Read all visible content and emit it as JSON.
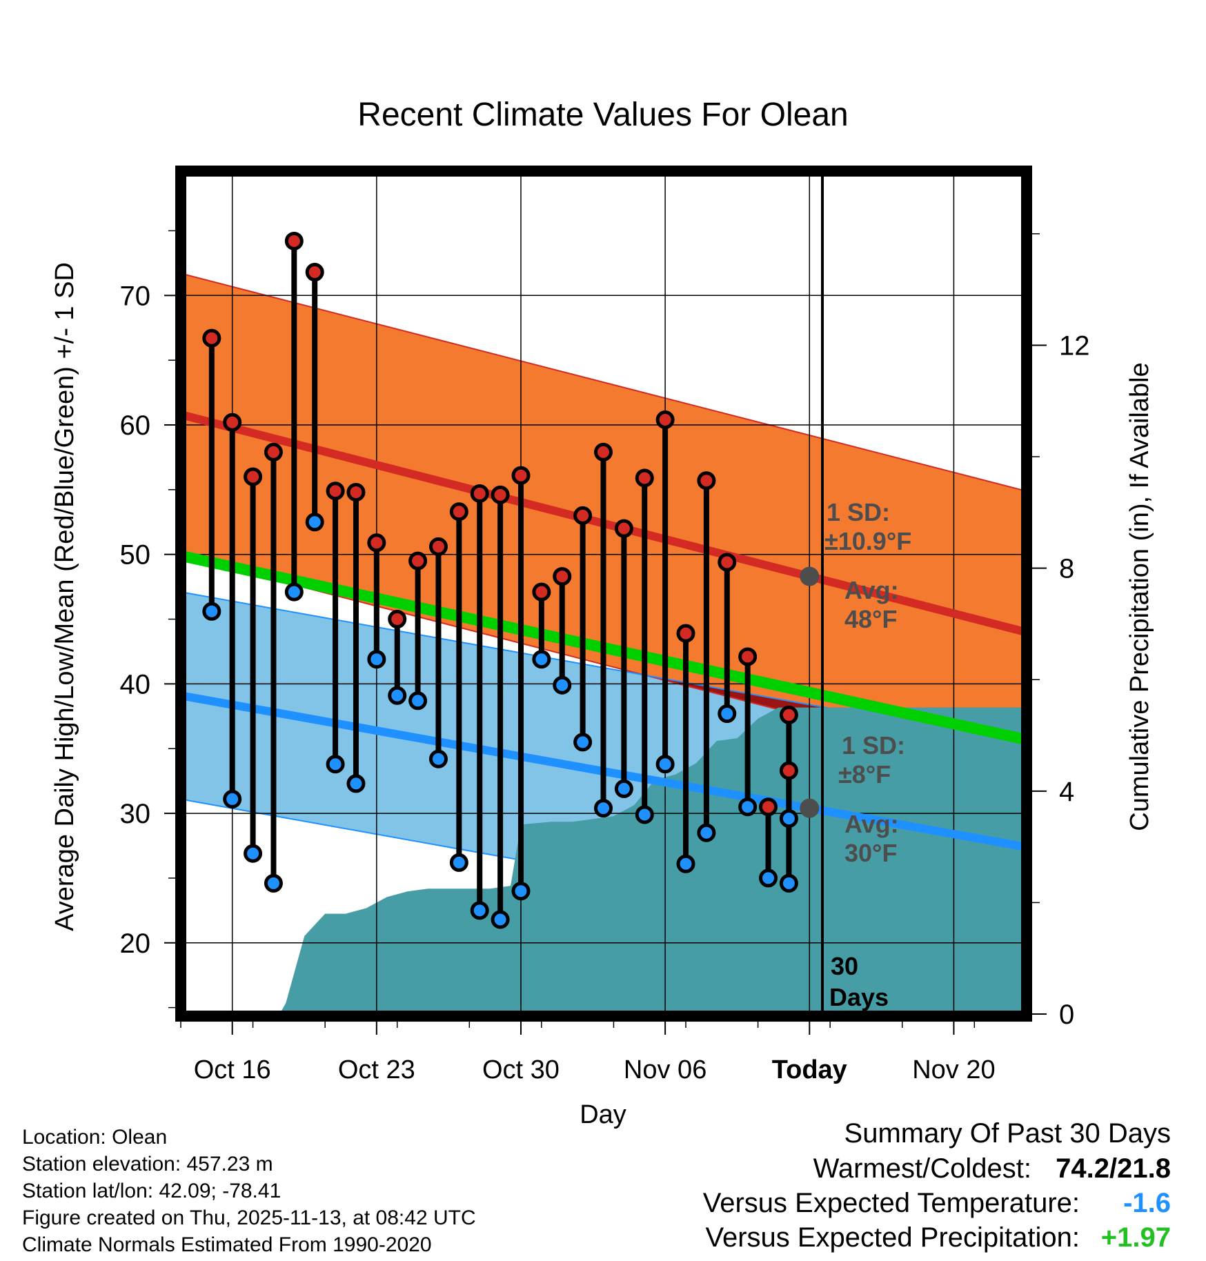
{
  "title": "Recent Climate Values For Olean",
  "footer_left": {
    "location": "Location: Olean",
    "elevation": "Station elevation: 457.23 m",
    "latlon": "Station lat/lon: 42.09; -78.41",
    "created": "Figure created on Thu, 2025-11-13, at 08:42 UTC",
    "normals": "Climate Normals Estimated From 1990-2020"
  },
  "summary": {
    "heading": "Summary Of Past 30 Days",
    "warm_cold_label": "Warmest/Coldest:",
    "warm_cold_value": "74.2/21.8",
    "temp_label": "Versus Expected Temperature:",
    "temp_value": "-1.6",
    "precip_label": "Versus Expected Precipitation:",
    "precip_value": "+1.97"
  },
  "colors": {
    "high_band": "#f47a30",
    "low_band": "#82c3e8",
    "mean_band": "#00d000",
    "high_line": "#d42a24",
    "low_line": "#1e90ff",
    "overlap": "#9b1414",
    "precip": "#479da5",
    "high_dot": "#d42a24",
    "low_dot": "#1e90ff",
    "temp_text_color": "#1e90ff",
    "precip_text_color": "#22c022",
    "annotation": "#4d4d4d"
  },
  "chart_data": {
    "type": "line",
    "xlabel": "Day",
    "ylabel": "Average Daily High/Low/Mean (Red/Blue/Green) +/- 1 SD",
    "y2label": "Cumulative Precipitation (in), If Available",
    "xlim": [
      -0.5,
      40.5
    ],
    "ylim": [
      14.5,
      79.5
    ],
    "y2lim": [
      0,
      15.1
    ],
    "yticks": [
      20,
      30,
      40,
      50,
      60,
      70
    ],
    "y2ticks": [
      0,
      4,
      8,
      12
    ],
    "xticks": [
      {
        "x": 2,
        "label": "Oct 16"
      },
      {
        "x": 9,
        "label": "Oct 23"
      },
      {
        "x": 16,
        "label": "Oct 30"
      },
      {
        "x": 23,
        "label": "Nov 06"
      },
      {
        "x": 30,
        "label": "Today"
      },
      {
        "x": 37,
        "label": "Nov 20"
      }
    ],
    "normal_high": {
      "start": 60.8,
      "end": 44.0
    },
    "normal_low": {
      "start": 39.1,
      "end": 27.4
    },
    "normal_mean": {
      "start": 49.9,
      "end": 35.7
    },
    "sd_high": 10.9,
    "sd_low": 8.0,
    "days": [
      1,
      2,
      3,
      4,
      5,
      6,
      7,
      8,
      9,
      10,
      11,
      12,
      13,
      14,
      15,
      16,
      17,
      18,
      19,
      20,
      21,
      22,
      23,
      24,
      25,
      26,
      27,
      28,
      29
    ],
    "highs": [
      66.7,
      60.2,
      56.0,
      57.9,
      74.2,
      71.8,
      54.9,
      54.8,
      50.9,
      45.0,
      49.5,
      50.6,
      53.3,
      54.7,
      54.6,
      56.1,
      47.1,
      48.3,
      53.0,
      57.9,
      52.0,
      55.9,
      60.4,
      43.9,
      55.7,
      49.4,
      42.1,
      30.5,
      33.3
    ],
    "lows": [
      45.6,
      31.1,
      26.9,
      24.6,
      47.1,
      52.5,
      33.8,
      32.3,
      41.9,
      39.1,
      38.7,
      34.2,
      26.2,
      22.5,
      21.8,
      24.0,
      41.9,
      39.9,
      35.5,
      30.4,
      31.9,
      29.9,
      33.8,
      26.1,
      28.5,
      37.7,
      30.5,
      25.0,
      24.6
    ],
    "last_day": {
      "x": 30,
      "high": 37.6,
      "low": 29.6
    },
    "precip_cumulative": {
      "x": [
        -0.5,
        4.3,
        4.6,
        5.5,
        6.5,
        7.5,
        8.5,
        9.5,
        10.5,
        11.5,
        12.5,
        13.5,
        14.5,
        15.5,
        16.0,
        17.5,
        18.5,
        19.5,
        20.5,
        21.5,
        22.5,
        23.5,
        24.5,
        25.5,
        26.5,
        27.5,
        28.5,
        29.0,
        40.5
      ],
      "y": [
        0,
        0,
        0.2,
        1.4,
        1.8,
        1.8,
        1.9,
        2.1,
        2.2,
        2.25,
        2.25,
        2.25,
        2.25,
        2.3,
        3.4,
        3.45,
        3.45,
        3.5,
        3.55,
        3.75,
        4.2,
        4.3,
        4.5,
        4.9,
        4.95,
        5.3,
        5.5,
        5.5,
        5.5
      ]
    },
    "annotations": {
      "high_sd": "1 SD:",
      "high_sd_value": "±10.9°F",
      "high_avg": "Avg:",
      "high_avg_value": "48°F",
      "low_sd": "1 SD:",
      "low_sd_value": "±8°F",
      "low_avg": "Avg:",
      "low_avg_value": "30°F",
      "days_num": "30",
      "days_label": "Days"
    }
  }
}
